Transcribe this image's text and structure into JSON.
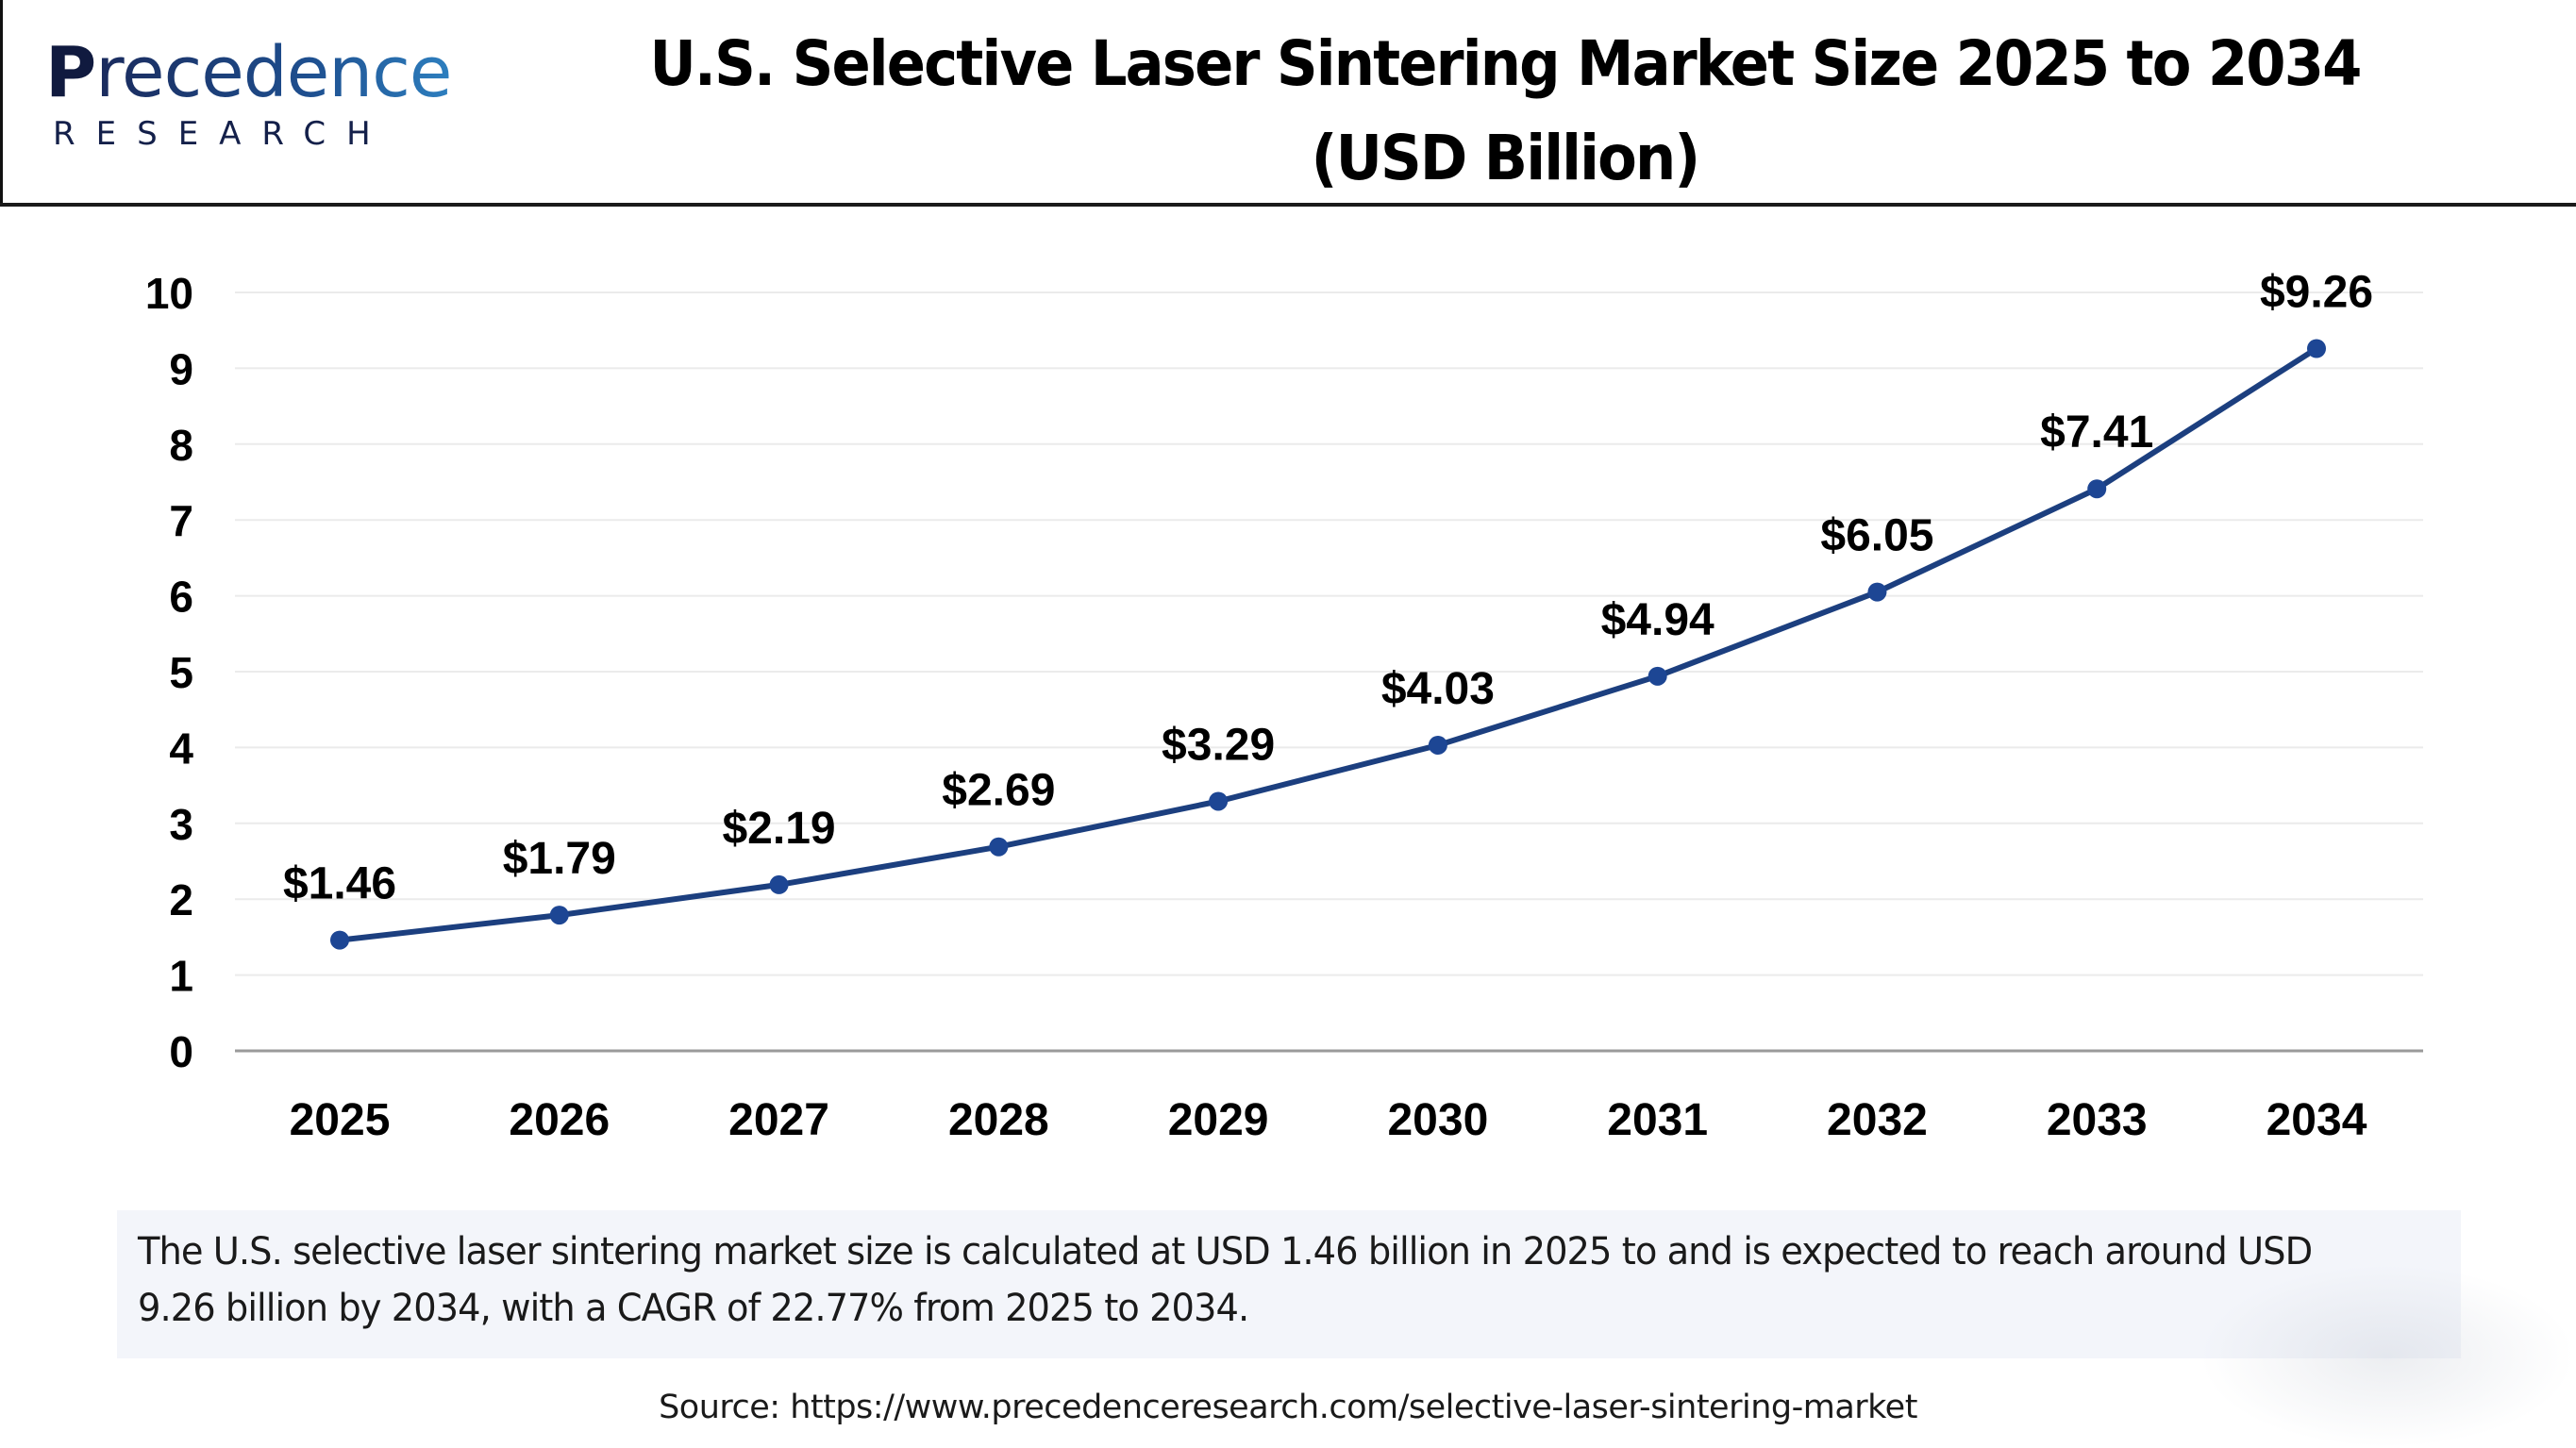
{
  "brand": {
    "logo_word_lead": "P",
    "logo_word_rest": "recedence",
    "logo_sub": "RESEARCH"
  },
  "header": {
    "title_line1": "U.S. Selective Laser Sintering Market Size 2025 to 2034",
    "title_line2": "(USD Billion)"
  },
  "colors": {
    "line": "#1c3f7f",
    "marker": "#1d4694",
    "grid": "#ebebeb",
    "axis": "#9a9a9a",
    "text": "#000000"
  },
  "chart_data": {
    "type": "line",
    "title": "U.S. Selective Laser Sintering Market Size 2025 to 2034 (USD Billion)",
    "xlabel": "",
    "ylabel": "",
    "categories": [
      "2025",
      "2026",
      "2027",
      "2028",
      "2029",
      "2030",
      "2031",
      "2032",
      "2033",
      "2034"
    ],
    "series": [
      {
        "name": "Market Size (USD Billion)",
        "values": [
          1.46,
          1.79,
          2.19,
          2.69,
          3.29,
          4.03,
          4.94,
          6.05,
          7.41,
          9.26
        ],
        "labels": [
          "$1.46",
          "$1.79",
          "$2.19",
          "$2.69",
          "$3.29",
          "$4.03",
          "$4.94",
          "$6.05",
          "$7.41",
          "$9.26"
        ]
      }
    ],
    "ylim": [
      0,
      10
    ],
    "yticks": [
      0,
      1,
      2,
      3,
      4,
      5,
      6,
      7,
      8,
      9,
      10
    ],
    "grid": true,
    "legend": "none"
  },
  "description": {
    "text": "The U.S. selective laser sintering market size is calculated at USD 1.46 billion in 2025 to and is expected to reach around USD 9.26 billion by 2034, with a CAGR of 22.77% from 2025 to 2034."
  },
  "source": {
    "text": "Source: https://www.precedenceresearch.com/selective-laser-sintering-market"
  }
}
